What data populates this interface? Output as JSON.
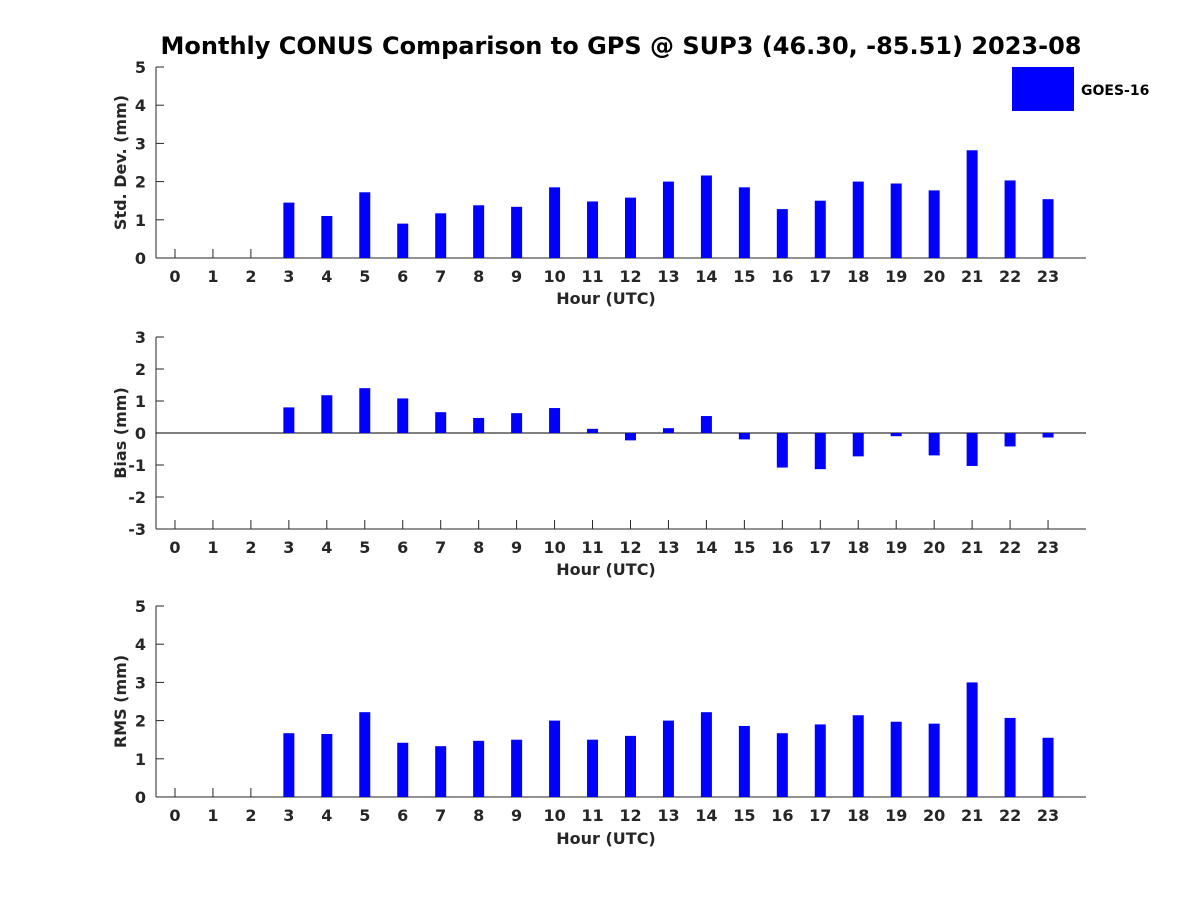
{
  "title": "Monthly CONUS Comparison to GPS @ SUP3 (46.30, -85.51) 2023-08",
  "colors": {
    "bar": "#0000ff",
    "axis": "#262626"
  },
  "legend": {
    "label": "GOES-16",
    "placement": "top-right"
  },
  "chart_data": [
    {
      "type": "bar",
      "xlabel": "Hour (UTC)",
      "ylabel": "Std. Dev. (mm)",
      "ylim": [
        0,
        5
      ],
      "yticks": [
        0,
        1,
        2,
        3,
        4,
        5
      ],
      "categories": [
        "0",
        "1",
        "2",
        "3",
        "4",
        "5",
        "6",
        "7",
        "8",
        "9",
        "10",
        "11",
        "12",
        "13",
        "14",
        "15",
        "16",
        "17",
        "18",
        "19",
        "20",
        "21",
        "22",
        "23"
      ],
      "series": [
        {
          "name": "GOES-16",
          "values": [
            null,
            null,
            null,
            1.45,
            1.1,
            1.72,
            0.9,
            1.17,
            1.38,
            1.34,
            1.85,
            1.48,
            1.58,
            2.0,
            2.16,
            1.85,
            1.28,
            1.5,
            2.0,
            1.95,
            1.77,
            2.82,
            2.03,
            1.54
          ]
        }
      ]
    },
    {
      "type": "bar",
      "xlabel": "Hour (UTC)",
      "ylabel": "Bias (mm)",
      "ylim": [
        -3,
        3
      ],
      "yticks": [
        -3,
        -2,
        -1,
        0,
        1,
        2,
        3
      ],
      "categories": [
        "0",
        "1",
        "2",
        "3",
        "4",
        "5",
        "6",
        "7",
        "8",
        "9",
        "10",
        "11",
        "12",
        "13",
        "14",
        "15",
        "16",
        "17",
        "18",
        "19",
        "20",
        "21",
        "22",
        "23"
      ],
      "series": [
        {
          "name": "GOES-16",
          "values": [
            null,
            null,
            null,
            0.8,
            1.18,
            1.4,
            1.08,
            0.65,
            0.47,
            0.62,
            0.78,
            0.13,
            -0.23,
            0.15,
            0.53,
            -0.2,
            -1.08,
            -1.13,
            -0.73,
            -0.1,
            -0.7,
            -1.03,
            -0.42,
            -0.14
          ]
        }
      ]
    },
    {
      "type": "bar",
      "xlabel": "Hour (UTC)",
      "ylabel": "RMS (mm)",
      "ylim": [
        0,
        5
      ],
      "yticks": [
        0,
        1,
        2,
        3,
        4,
        5
      ],
      "categories": [
        "0",
        "1",
        "2",
        "3",
        "4",
        "5",
        "6",
        "7",
        "8",
        "9",
        "10",
        "11",
        "12",
        "13",
        "14",
        "15",
        "16",
        "17",
        "18",
        "19",
        "20",
        "21",
        "22",
        "23"
      ],
      "series": [
        {
          "name": "GOES-16",
          "values": [
            null,
            null,
            null,
            1.67,
            1.65,
            2.22,
            1.42,
            1.33,
            1.47,
            1.5,
            2.0,
            1.5,
            1.6,
            2.0,
            2.22,
            1.86,
            1.67,
            1.9,
            2.14,
            1.97,
            1.92,
            3.0,
            2.07,
            1.55
          ]
        }
      ]
    }
  ]
}
